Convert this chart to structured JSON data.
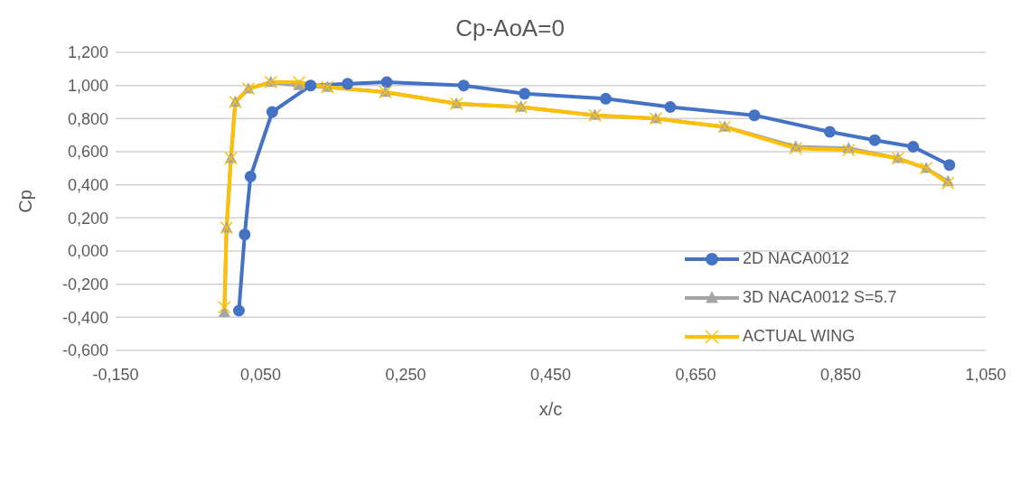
{
  "chart_data": {
    "type": "line",
    "title": "Cp-AoA=0",
    "xlabel": "x/c",
    "ylabel": "Cp",
    "xlim": [
      -0.15,
      1.05
    ],
    "xticks": [
      {
        "value": -0.15,
        "label": "-0,150"
      },
      {
        "value": 0.05,
        "label": "0,050"
      },
      {
        "value": 0.25,
        "label": "0,250"
      },
      {
        "value": 0.45,
        "label": "0,450"
      },
      {
        "value": 0.65,
        "label": "0,650"
      },
      {
        "value": 0.85,
        "label": "0,850"
      },
      {
        "value": 1.05,
        "label": "1,050"
      }
    ],
    "ylim": [
      -0.6,
      1.2
    ],
    "yticks": [
      {
        "value": -0.6,
        "label": "-0,600"
      },
      {
        "value": -0.4,
        "label": "-0,400"
      },
      {
        "value": -0.2,
        "label": "-0,200"
      },
      {
        "value": 0,
        "label": "0,000"
      },
      {
        "value": 0.2,
        "label": "0,200"
      },
      {
        "value": 0.4,
        "label": "0,400"
      },
      {
        "value": 0.6,
        "label": "0,600"
      },
      {
        "value": 0.8,
        "label": "0,800"
      },
      {
        "value": 1.0,
        "label": "1,000"
      },
      {
        "value": 1.2,
        "label": "1,200"
      }
    ],
    "grid": "y",
    "legend": "right",
    "series": [
      {
        "name": "2D NACA0012",
        "color": "#4472c4",
        "marker": "circle",
        "x": [
          0.02,
          0.028,
          0.036,
          0.066,
          0.119,
          0.17,
          0.224,
          0.33,
          0.414,
          0.526,
          0.615,
          0.731,
          0.835,
          0.897,
          0.95,
          1.0
        ],
        "values": [
          -0.36,
          0.1,
          0.45,
          0.84,
          1.0,
          1.01,
          1.02,
          1.0,
          0.95,
          0.92,
          0.87,
          0.82,
          0.72,
          0.67,
          0.63,
          0.52
        ]
      },
      {
        "name": "3D NACA0012 S=5.7",
        "color": "#a5a5a5",
        "marker": "triangle",
        "x": [
          0.0,
          0.003,
          0.009,
          0.015,
          0.033,
          0.064,
          0.103,
          0.142,
          0.222,
          0.32,
          0.409,
          0.511,
          0.595,
          0.69,
          0.788,
          0.861,
          0.929,
          0.968,
          0.998
        ],
        "values": [
          -0.37,
          0.14,
          0.56,
          0.9,
          0.98,
          1.02,
          1.0,
          0.99,
          0.96,
          0.89,
          0.87,
          0.82,
          0.8,
          0.75,
          0.63,
          0.62,
          0.56,
          0.5,
          0.42
        ]
      },
      {
        "name": "ACTUAL WING",
        "color": "#ffc000",
        "marker": "cross",
        "x": [
          0.0,
          0.003,
          0.009,
          0.015,
          0.033,
          0.064,
          0.103,
          0.142,
          0.222,
          0.32,
          0.409,
          0.511,
          0.595,
          0.69,
          0.788,
          0.861,
          0.929,
          0.968,
          0.998
        ],
        "values": [
          -0.34,
          0.14,
          0.56,
          0.9,
          0.98,
          1.02,
          1.02,
          0.99,
          0.96,
          0.89,
          0.87,
          0.82,
          0.8,
          0.75,
          0.62,
          0.61,
          0.56,
          0.5,
          0.41
        ]
      }
    ]
  }
}
